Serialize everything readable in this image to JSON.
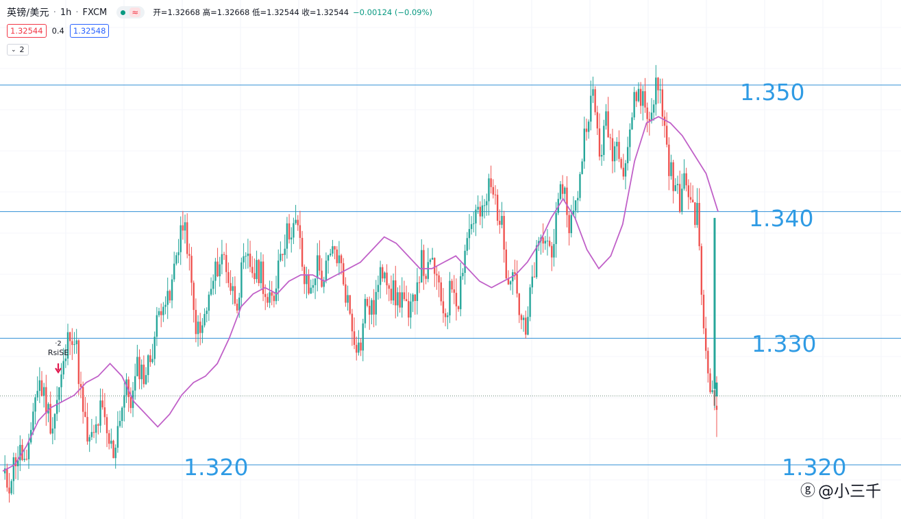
{
  "header": {
    "symbol": "英镑/美元",
    "interval": "1h",
    "exchange": "FXCM",
    "ohlc_label": "开=1.32668 高=1.32668 低=1.32544 收=1.32544",
    "change": "−0.00124 (−0.09%)"
  },
  "prices": {
    "sell": "1.32544",
    "spread": "0.4",
    "buy": "1.32548"
  },
  "collapse": {
    "count": "2"
  },
  "signal": {
    "top": "2",
    "name": "RsiSE"
  },
  "levels": {
    "l1350": "1.350",
    "l1340": "1.340",
    "l1330": "1.330",
    "l1320_left": "1.320",
    "l1320_right": "1.320"
  },
  "watermark": "@小三千",
  "colors": {
    "up": "#26a69a",
    "down": "#ef5350",
    "ma": "#c060c8",
    "level_line": "#2f8fd6",
    "level_text": "#2f9be4",
    "signal": "#e0194e"
  },
  "chart_data": {
    "type": "candlestick",
    "symbol": "GBP/USD",
    "interval": "1h",
    "horizontal_levels": [
      1.35,
      1.34,
      1.33,
      1.32
    ],
    "last_price": 1.32544,
    "price_path": [
      1.319,
      1.3185,
      1.3205,
      1.321,
      1.3195,
      1.325,
      1.3265,
      1.325,
      1.323,
      1.3255,
      1.328,
      1.331,
      1.329,
      1.324,
      1.3215,
      1.3225,
      1.3245,
      1.322,
      1.321,
      1.324,
      1.326,
      1.325,
      1.328,
      1.327,
      1.3285,
      1.331,
      1.3335,
      1.3325,
      1.336,
      1.339,
      1.3375,
      1.332,
      1.33,
      1.332,
      1.334,
      1.336,
      1.3365,
      1.334,
      1.333,
      1.3355,
      1.336,
      1.335,
      1.3355,
      1.3325,
      1.333,
      1.337,
      1.338,
      1.339,
      1.3385,
      1.3345,
      1.3335,
      1.336,
      1.3345,
      1.336,
      1.337,
      1.3355,
      1.333,
      1.3305,
      1.329,
      1.333,
      1.332,
      1.334,
      1.336,
      1.334,
      1.333,
      1.3335,
      1.331,
      1.334,
      1.336,
      1.335,
      1.336,
      1.333,
      1.332,
      1.3345,
      1.333,
      1.337,
      1.339,
      1.34,
      1.3395,
      1.342,
      1.341,
      1.339,
      1.335,
      1.336,
      1.332,
      1.33,
      1.3345,
      1.337,
      1.338,
      1.337,
      1.339,
      1.3425,
      1.339,
      1.34,
      1.344,
      1.348,
      1.349,
      1.3445,
      1.347,
      1.345,
      1.3455,
      1.3435,
      1.347,
      1.3495,
      1.349,
      1.347,
      1.35,
      1.349,
      1.3445,
      1.342,
      1.341,
      1.3425,
      1.3405,
      1.3395,
      1.329,
      1.326,
      1.3254
    ],
    "moving_average_path": [
      1.3195,
      1.32,
      1.3215,
      1.3235,
      1.3245,
      1.325,
      1.3255,
      1.3265,
      1.327,
      1.328,
      1.327,
      1.325,
      1.324,
      1.323,
      1.324,
      1.3255,
      1.3265,
      1.327,
      1.328,
      1.33,
      1.3325,
      1.3335,
      1.334,
      1.3335,
      1.3345,
      1.335,
      1.335,
      1.3345,
      1.335,
      1.3355,
      1.336,
      1.337,
      1.338,
      1.3375,
      1.3365,
      1.3355,
      1.3355,
      1.336,
      1.3365,
      1.3355,
      1.3345,
      1.334,
      1.3345,
      1.335,
      1.336,
      1.3375,
      1.3395,
      1.341,
      1.3395,
      1.337,
      1.3355,
      1.3365,
      1.339,
      1.344,
      1.347,
      1.3475,
      1.347,
      1.346,
      1.3445,
      1.343,
      1.34
    ],
    "signal_marker": {
      "label": "RsiSE",
      "count": 2,
      "type": "sell"
    }
  }
}
